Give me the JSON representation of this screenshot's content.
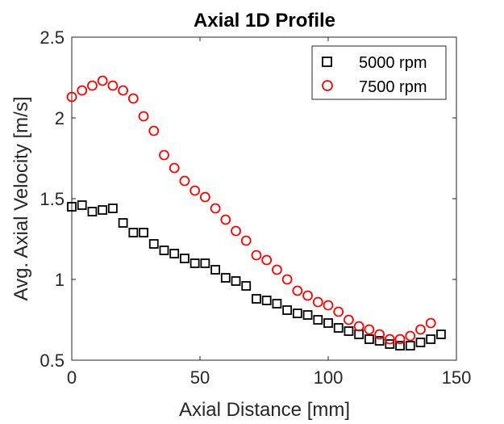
{
  "chart_data": {
    "type": "scatter",
    "title": "Axial 1D Profile",
    "xlabel": "Axial Distance [mm]",
    "ylabel": "Avg. Axial Velocity [m/s]",
    "xlim": [
      0,
      150
    ],
    "ylim": [
      0.5,
      2.5
    ],
    "xticks": [
      0,
      50,
      100,
      150
    ],
    "xtick_labels": [
      "0",
      "50",
      "100",
      "150"
    ],
    "yticks": [
      0.5,
      1,
      1.5,
      2,
      2.5
    ],
    "ytick_labels": [
      "0.5",
      "1",
      "1.5",
      "2",
      "2.5"
    ],
    "grid": false,
    "legend_position": "top-right",
    "series": [
      {
        "name": "5000 rpm",
        "marker": "square",
        "color": "#000000",
        "x": [
          0,
          4,
          8,
          12,
          16,
          20,
          24,
          28,
          32,
          36,
          40,
          44,
          48,
          52,
          56,
          60,
          64,
          68,
          72,
          76,
          80,
          84,
          88,
          92,
          96,
          100,
          104,
          108,
          112,
          116,
          120,
          124,
          128,
          132,
          136,
          140,
          144
        ],
        "y": [
          1.45,
          1.46,
          1.42,
          1.43,
          1.44,
          1.35,
          1.29,
          1.29,
          1.22,
          1.18,
          1.16,
          1.13,
          1.1,
          1.1,
          1.06,
          1.01,
          0.99,
          0.96,
          0.88,
          0.87,
          0.85,
          0.81,
          0.79,
          0.78,
          0.75,
          0.73,
          0.7,
          0.68,
          0.66,
          0.63,
          0.62,
          0.6,
          0.59,
          0.59,
          0.61,
          0.63,
          0.66
        ]
      },
      {
        "name": "7500 rpm",
        "marker": "circle",
        "color": "#ff0000",
        "x": [
          0,
          4,
          8,
          12,
          16,
          20,
          24,
          28,
          32,
          36,
          40,
          44,
          48,
          52,
          56,
          60,
          64,
          68,
          72,
          76,
          80,
          84,
          88,
          92,
          96,
          100,
          104,
          108,
          112,
          116,
          120,
          124,
          128,
          132,
          136,
          140
        ],
        "y": [
          2.13,
          2.17,
          2.2,
          2.23,
          2.2,
          2.17,
          2.12,
          2.01,
          1.92,
          1.77,
          1.69,
          1.61,
          1.55,
          1.51,
          1.44,
          1.37,
          1.3,
          1.24,
          1.15,
          1.12,
          1.06,
          1.0,
          0.93,
          0.9,
          0.86,
          0.84,
          0.8,
          0.75,
          0.71,
          0.69,
          0.66,
          0.63,
          0.63,
          0.65,
          0.69,
          0.73
        ]
      }
    ]
  }
}
